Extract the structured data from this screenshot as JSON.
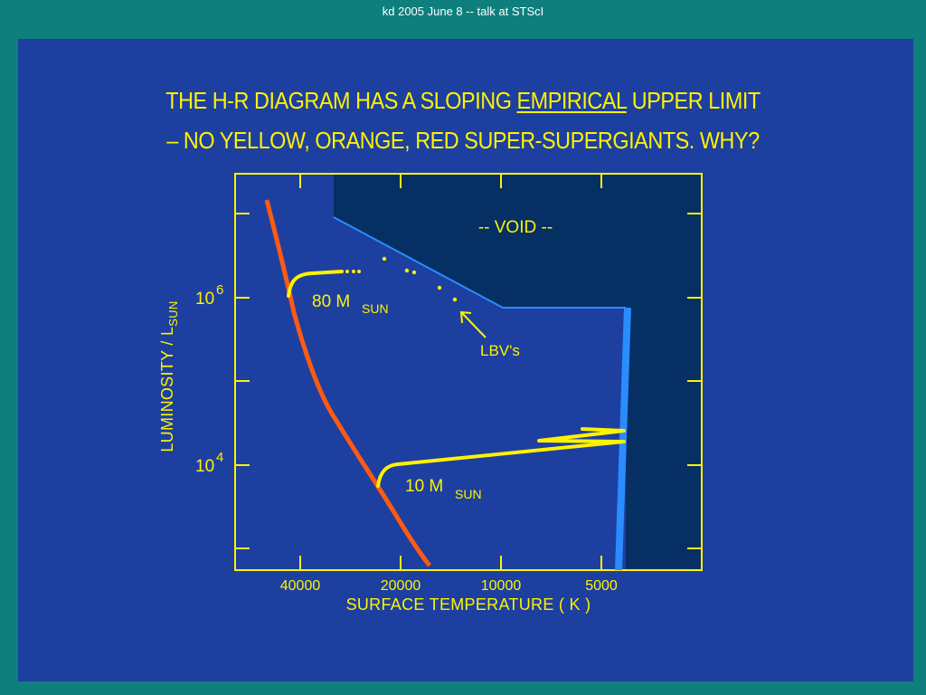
{
  "header": {
    "text": "kd  2005 June 8 -- talk at STScI"
  },
  "slide": {
    "title_line1_before": "THE  H-R DIAGRAM HAS A SLOPING ",
    "title_line1_emph": "EMPIRICAL",
    "title_line1_after": " UPPER LIMIT",
    "title_line2": "– NO  YELLOW, ORANGE, RED  SUPER-SUPERGIANTS.  WHY?"
  },
  "colors": {
    "background": "#0e7f7d",
    "panel": "#1d3fa0",
    "void_region": "#062f63",
    "text": "#fff200",
    "main_sequence": "#ff5a12",
    "limit_line": "#2a8cff",
    "tracks": "#fff200"
  },
  "chart_data": {
    "type": "line",
    "xlabel": "SURFACE  TEMPERATURE  ( K )",
    "ylabel_main": "LUMINOSITY / L",
    "ylabel_sub": "SUN",
    "x_scale": "log, decreasing to the right",
    "y_scale": "log",
    "x_ticks": [
      "40000",
      "20000",
      "10000",
      "5000"
    ],
    "y_ticks": [
      {
        "base": "10",
        "exp": "6"
      },
      {
        "base": "10",
        "exp": "4"
      }
    ],
    "annotations": {
      "void": "-- VOID  --",
      "lbv": "LBV's",
      "track80": {
        "main": "80  M",
        "sub": "SUN"
      },
      "track10": {
        "main": "10  M",
        "sub": "SUN"
      }
    },
    "series": [
      {
        "points": [
          [
            52000,
            32000000.0
          ],
          [
            35000,
            1600000.0
          ],
          [
            25000,
            100000.0
          ],
          [
            18000,
            7000
          ],
          [
            15000,
            700
          ]
        ]
      },
      {
        "points": [
          [
            33000,
            20000000.0
          ],
          [
            15000,
            1050000.0
          ],
          [
            5600,
            1050000.0
          ],
          [
            5400,
            1000.0
          ]
        ]
      },
      {
        "points": [
          [
            36000,
            1300000.0
          ],
          [
            28000,
            2500000.0
          ],
          [
            21500,
            2600000.0
          ]
        ]
      },
      {
        "points": [
          [
            21000,
            6300
          ],
          [
            19000,
            9500
          ],
          [
            5300,
            22000
          ],
          [
            7600,
            20000
          ],
          [
            5300,
            30000
          ]
        ]
      }
    ],
    "lbv_points": [
      [
        19000,
        3800000.0
      ],
      [
        16500,
        2600000.0
      ],
      [
        15800,
        2500000.0
      ],
      [
        13800,
        1700000.0
      ],
      [
        12800,
        1200000.0
      ]
    ]
  }
}
